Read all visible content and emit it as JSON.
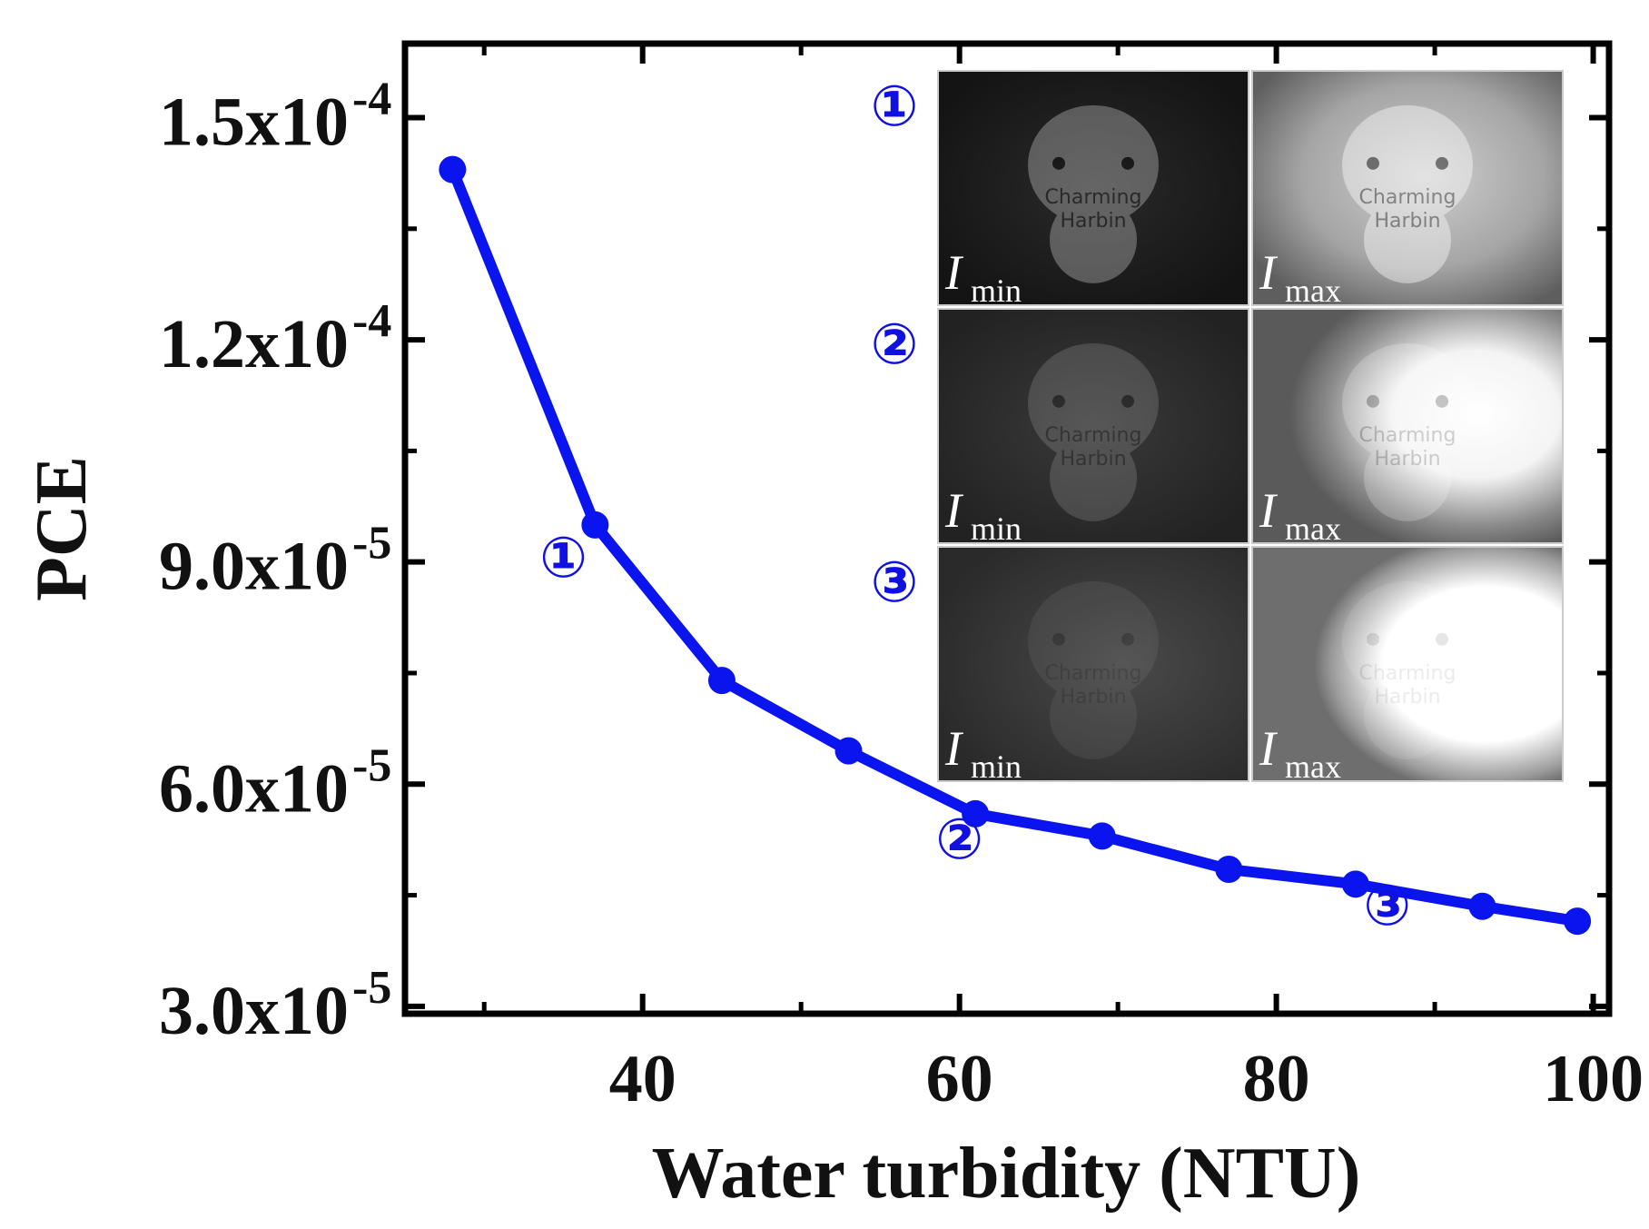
{
  "chart_data": {
    "type": "line",
    "title": "",
    "xlabel": "Water turbidity (NTU)",
    "ylabel": "PCE",
    "xlim": [
      25,
      101
    ],
    "ylim": [
      2.9e-05,
      0.00016
    ],
    "x_ticks": [
      {
        "value": 40,
        "label": "40"
      },
      {
        "value": 60,
        "label": "60"
      },
      {
        "value": 80,
        "label": "80"
      },
      {
        "value": 100,
        "label": "100"
      }
    ],
    "y_ticks": [
      {
        "value": 3e-05,
        "mantissa": "3.0x10",
        "exp": "-5"
      },
      {
        "value": 6e-05,
        "mantissa": "6.0x10",
        "exp": "-5"
      },
      {
        "value": 9e-05,
        "mantissa": "9.0x10",
        "exp": "-5"
      },
      {
        "value": 0.00012,
        "mantissa": "1.2x10",
        "exp": "-4"
      },
      {
        "value": 0.00015,
        "mantissa": "1.5x10",
        "exp": "-4"
      }
    ],
    "series": [
      {
        "name": "PCE",
        "color": "#0a14ee",
        "x": [
          28,
          37,
          45,
          53,
          61,
          69,
          77,
          85,
          93,
          99
        ],
        "y": [
          0.000143,
          9.5e-05,
          7.4e-05,
          6.45e-05,
          5.6e-05,
          5.3e-05,
          4.85e-05,
          4.65e-05,
          4.35e-05,
          4.15e-05
        ]
      }
    ],
    "annotations": [
      {
        "label": "①",
        "x": 35,
        "y": 8.8e-05
      },
      {
        "label": "②",
        "x": 60,
        "y": 5e-05
      },
      {
        "label": "③",
        "x": 87,
        "y": 4.1e-05
      }
    ]
  },
  "inset": {
    "rows": [
      {
        "marker": "①",
        "left_label": "I",
        "left_sub": "min",
        "right_label": "I",
        "right_sub": "max",
        "watermark": [
          "Charming",
          "Harbin"
        ]
      },
      {
        "marker": "②",
        "left_label": "I",
        "left_sub": "min",
        "right_label": "I",
        "right_sub": "max",
        "watermark": [
          "Charming",
          "Harbin"
        ]
      },
      {
        "marker": "③",
        "left_label": "I",
        "left_sub": "min",
        "right_label": "I",
        "right_sub": "max",
        "watermark": [
          "Charming",
          "Harbin"
        ]
      }
    ]
  },
  "colors": {
    "series": "#0a14ee",
    "axis": "#000000",
    "marker_text": "#1010e0"
  }
}
